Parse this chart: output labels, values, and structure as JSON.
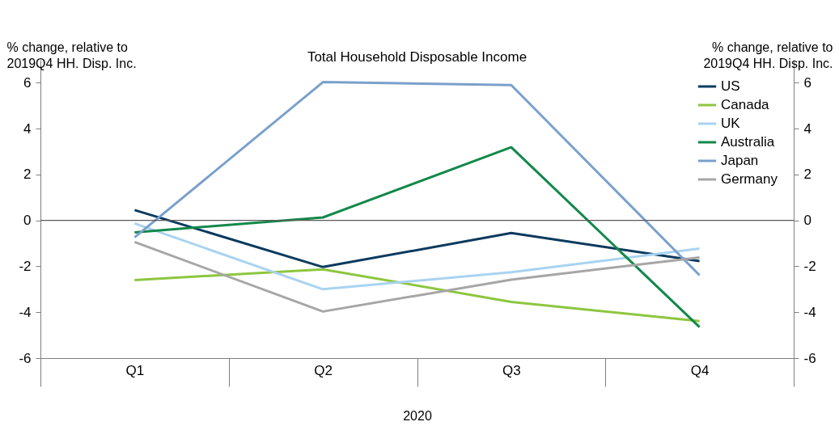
{
  "chart_data": {
    "type": "line",
    "title": "Total Household Disposable Income",
    "ylabel": "% change, relative to\n2019Q4 HH. Disp. Inc.",
    "y2label": "% change, relative to\n2019Q4 HH. Disp. Inc.",
    "xlabel": "2020",
    "categories": [
      "Q1",
      "Q2",
      "Q3",
      "Q4"
    ],
    "series": [
      {
        "name": "US",
        "color": "#0b3a5e",
        "values": [
          0.45,
          -2.03,
          -0.55,
          -1.77
        ]
      },
      {
        "name": "Canada",
        "color": "#8dc63f",
        "values": [
          -2.6,
          -2.13,
          -3.55,
          -4.39
        ]
      },
      {
        "name": "UK",
        "color": "#a9d3f0",
        "values": [
          -0.13,
          -3.0,
          -2.26,
          -1.23
        ]
      },
      {
        "name": "Australia",
        "color": "#13884a",
        "values": [
          -0.52,
          0.13,
          3.19,
          -4.65
        ]
      },
      {
        "name": "Japan",
        "color": "#7aa0cc",
        "values": [
          -0.74,
          6.03,
          5.9,
          -2.39
        ]
      },
      {
        "name": "Germany",
        "color": "#a6a6a6",
        "values": [
          -0.94,
          -3.97,
          -2.58,
          -1.61
        ]
      }
    ],
    "ylim": [
      -6,
      7
    ],
    "yticks": [
      -6,
      -4,
      -2,
      0,
      2,
      4,
      6
    ],
    "y2lim": [
      -6,
      7
    ],
    "y2ticks": [
      -6,
      -4,
      -2,
      0,
      2,
      4,
      6
    ],
    "ref_lines": [
      {
        "axis": "y",
        "value": 0,
        "color": "#595959"
      }
    ],
    "legend": "top right",
    "grid": false,
    "line_style": "solid",
    "marker": "none"
  }
}
